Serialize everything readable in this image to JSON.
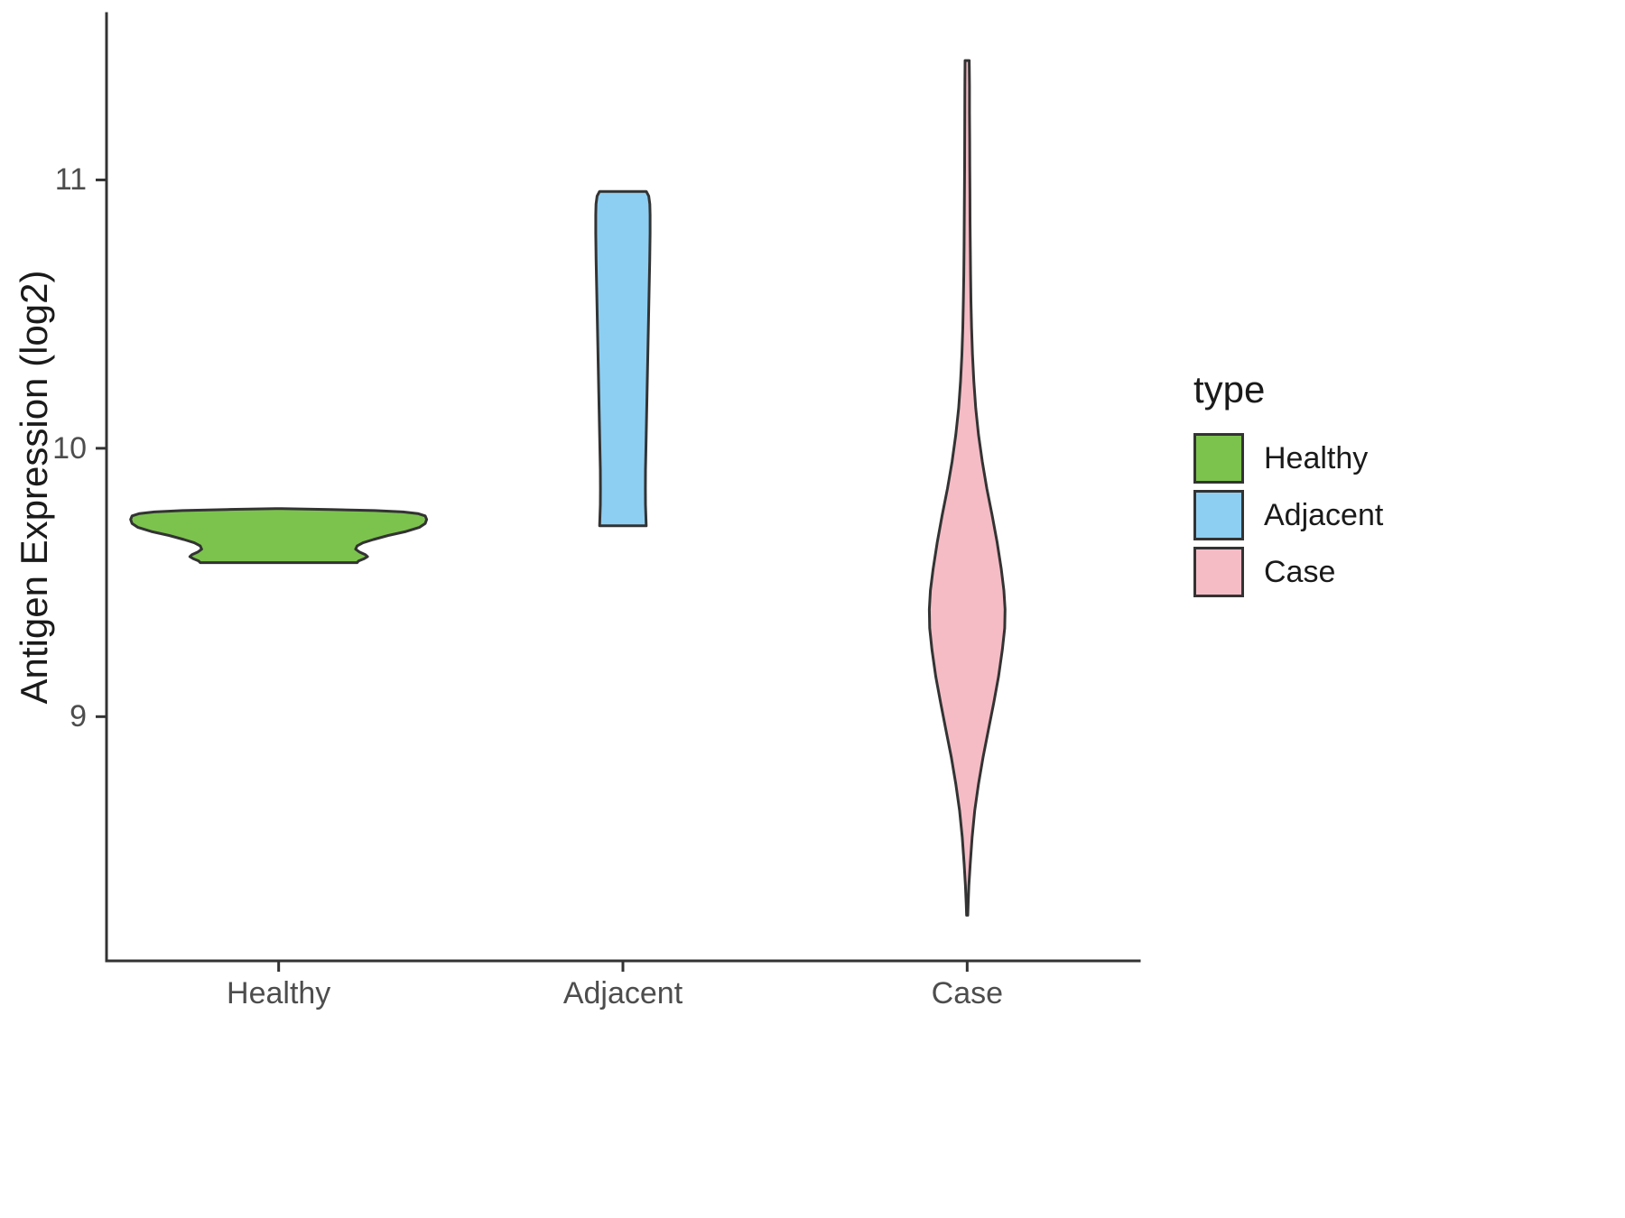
{
  "chart_data": {
    "type": "violin",
    "title": "",
    "xlabel": "",
    "ylabel": "Antigen Expression (log2)",
    "categories": [
      "Healthy",
      "Adjacent",
      "Case"
    ],
    "yticks": [
      9,
      10,
      11
    ],
    "ylim": [
      8.09,
      11.62
    ],
    "grid": false,
    "legend_title": "type",
    "legend_position": "right",
    "colors": {
      "outline": "#333333",
      "axis": "#333333",
      "tick_text": "#4d4d4d",
      "title_text": "#1a1a1a"
    },
    "series": [
      {
        "name": "Healthy",
        "color": "#7CC34E",
        "category": "Healthy",
        "value_range": [
          9.57,
          9.78
        ],
        "max_width": 0.86,
        "profile": [
          [
            9.775,
            0.02
          ],
          [
            9.772,
            0.35
          ],
          [
            9.768,
            0.65
          ],
          [
            9.763,
            0.84
          ],
          [
            9.757,
            0.94
          ],
          [
            9.748,
            0.99
          ],
          [
            9.735,
            1.0
          ],
          [
            9.72,
            0.99
          ],
          [
            9.705,
            0.95
          ],
          [
            9.69,
            0.86
          ],
          [
            9.675,
            0.74
          ],
          [
            9.66,
            0.64
          ],
          [
            9.648,
            0.57
          ],
          [
            9.636,
            0.53
          ],
          [
            9.624,
            0.52
          ],
          [
            9.614,
            0.545
          ],
          [
            9.604,
            0.585
          ],
          [
            9.596,
            0.6
          ],
          [
            9.588,
            0.575
          ],
          [
            9.58,
            0.54
          ],
          [
            9.574,
            0.53
          ]
        ]
      },
      {
        "name": "Adjacent",
        "color": "#8DCFF2",
        "category": "Adjacent",
        "value_range": [
          9.71,
          10.96
        ],
        "max_width": 0.158,
        "profile": [
          [
            10.957,
            0.86
          ],
          [
            10.94,
            0.95
          ],
          [
            10.91,
            0.99
          ],
          [
            10.87,
            1.0
          ],
          [
            10.8,
            1.0
          ],
          [
            10.7,
            0.985
          ],
          [
            10.6,
            0.965
          ],
          [
            10.5,
            0.945
          ],
          [
            10.4,
            0.925
          ],
          [
            10.3,
            0.905
          ],
          [
            10.2,
            0.885
          ],
          [
            10.1,
            0.865
          ],
          [
            10.0,
            0.845
          ],
          [
            9.92,
            0.83
          ],
          [
            9.85,
            0.825
          ],
          [
            9.79,
            0.83
          ],
          [
            9.74,
            0.845
          ],
          [
            9.711,
            0.855
          ]
        ]
      },
      {
        "name": "Case",
        "color": "#F5BCC6",
        "category": "Case",
        "value_range": [
          8.26,
          11.45
        ],
        "max_width": 0.22,
        "profile": [
          [
            11.445,
            0.055
          ],
          [
            11.35,
            0.06
          ],
          [
            11.25,
            0.062
          ],
          [
            11.15,
            0.065
          ],
          [
            11.05,
            0.068
          ],
          [
            10.95,
            0.072
          ],
          [
            10.85,
            0.076
          ],
          [
            10.75,
            0.082
          ],
          [
            10.65,
            0.09
          ],
          [
            10.55,
            0.1
          ],
          [
            10.45,
            0.115
          ],
          [
            10.35,
            0.14
          ],
          [
            10.25,
            0.175
          ],
          [
            10.15,
            0.225
          ],
          [
            10.05,
            0.3
          ],
          [
            9.95,
            0.4
          ],
          [
            9.85,
            0.52
          ],
          [
            9.75,
            0.66
          ],
          [
            9.65,
            0.79
          ],
          [
            9.55,
            0.9
          ],
          [
            9.47,
            0.97
          ],
          [
            9.4,
            1.0
          ],
          [
            9.33,
            0.99
          ],
          [
            9.25,
            0.93
          ],
          [
            9.15,
            0.83
          ],
          [
            9.05,
            0.7
          ],
          [
            8.95,
            0.56
          ],
          [
            8.85,
            0.42
          ],
          [
            8.75,
            0.3
          ],
          [
            8.65,
            0.2
          ],
          [
            8.55,
            0.13
          ],
          [
            8.45,
            0.08
          ],
          [
            8.37,
            0.045
          ],
          [
            8.3,
            0.025
          ],
          [
            8.26,
            0.015
          ]
        ]
      }
    ]
  }
}
